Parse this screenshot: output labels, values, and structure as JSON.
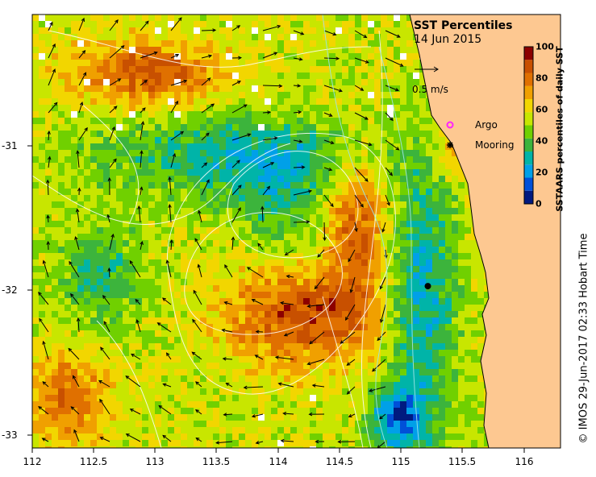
{
  "title": "SST Percentiles",
  "date": "14 Jun 2015",
  "credit": "© IMOS 29-Jun-2017 02:33 Hobart Time",
  "vector_scale_label": "0.5 m/s",
  "legend": {
    "argo_label": "Argo",
    "mooring_label": "Mooring",
    "argo_color": "#ff22ff",
    "mooring_color": "#000000"
  },
  "colorbar": {
    "label": "SSTAARS percentiles of daily SST",
    "ticks": [
      "0",
      "20",
      "40",
      "60",
      "80",
      "100"
    ],
    "colors": [
      "#001a80",
      "#0050d8",
      "#00a0e8",
      "#00b4a8",
      "#3cb43c",
      "#70d000",
      "#c8e600",
      "#f2d600",
      "#f0a000",
      "#e07000",
      "#c85000",
      "#8c0000"
    ]
  },
  "axes": {
    "x_ticks": [
      "112",
      "112.5",
      "113",
      "113.5",
      "114",
      "114.5",
      "115",
      "115.5",
      "116"
    ],
    "y_ticks": [
      "-31",
      "-32",
      "-33"
    ],
    "lon_range": [
      112.0,
      116.3
    ],
    "lat_range": [
      -30.1,
      -33.1
    ]
  },
  "mooring": {
    "lon": 115.22,
    "lat": -31.98
  },
  "land_color": "#fdc891"
}
